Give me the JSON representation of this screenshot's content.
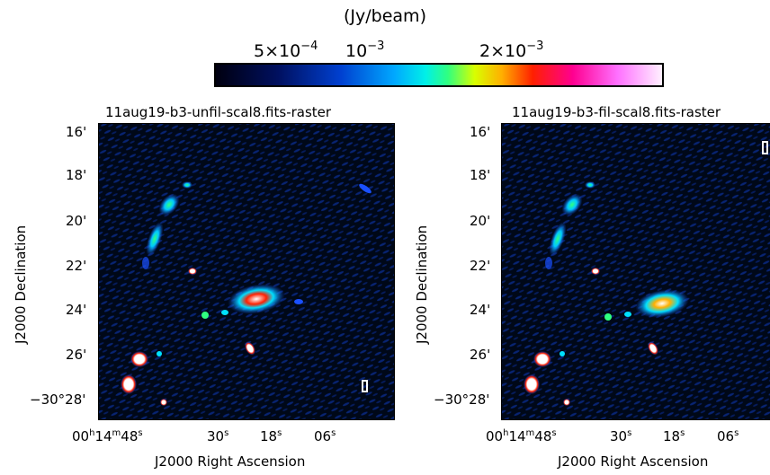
{
  "colorbar": {
    "unit": "(Jy/beam)",
    "ticks": [
      {
        "base": "5×10",
        "exp": "−4"
      },
      {
        "base": "10",
        "exp": "−3"
      },
      {
        "base": "2×10",
        "exp": "−3"
      }
    ]
  },
  "panels": [
    {
      "title": "11aug19-b3-unfil-scal8.fits-raster"
    },
    {
      "title": "11aug19-b3-fil-scal8.fits-raster"
    }
  ],
  "axes": {
    "ylabel": "J2000 Declination",
    "xlabel": "J2000 Right Ascension",
    "yticks": [
      "16'",
      "18'",
      "20'",
      "22'",
      "24'",
      "26'",
      "−30°28'"
    ],
    "xticks": [
      {
        "main": "00",
        "h": "h",
        "mid": "14",
        "m": "m",
        "val": "48",
        "s": "s"
      },
      {
        "val": "30",
        "s": "s"
      },
      {
        "val": "18",
        "s": "s"
      },
      {
        "val": "06",
        "s": "s"
      }
    ]
  },
  "colors": {
    "background": "#000818",
    "noise": "#0a2a8a",
    "emission_low": "#1a50ff",
    "emission_mid": "#00e0ff",
    "emission_high": "#ff2000",
    "peak": "#ffffff"
  }
}
